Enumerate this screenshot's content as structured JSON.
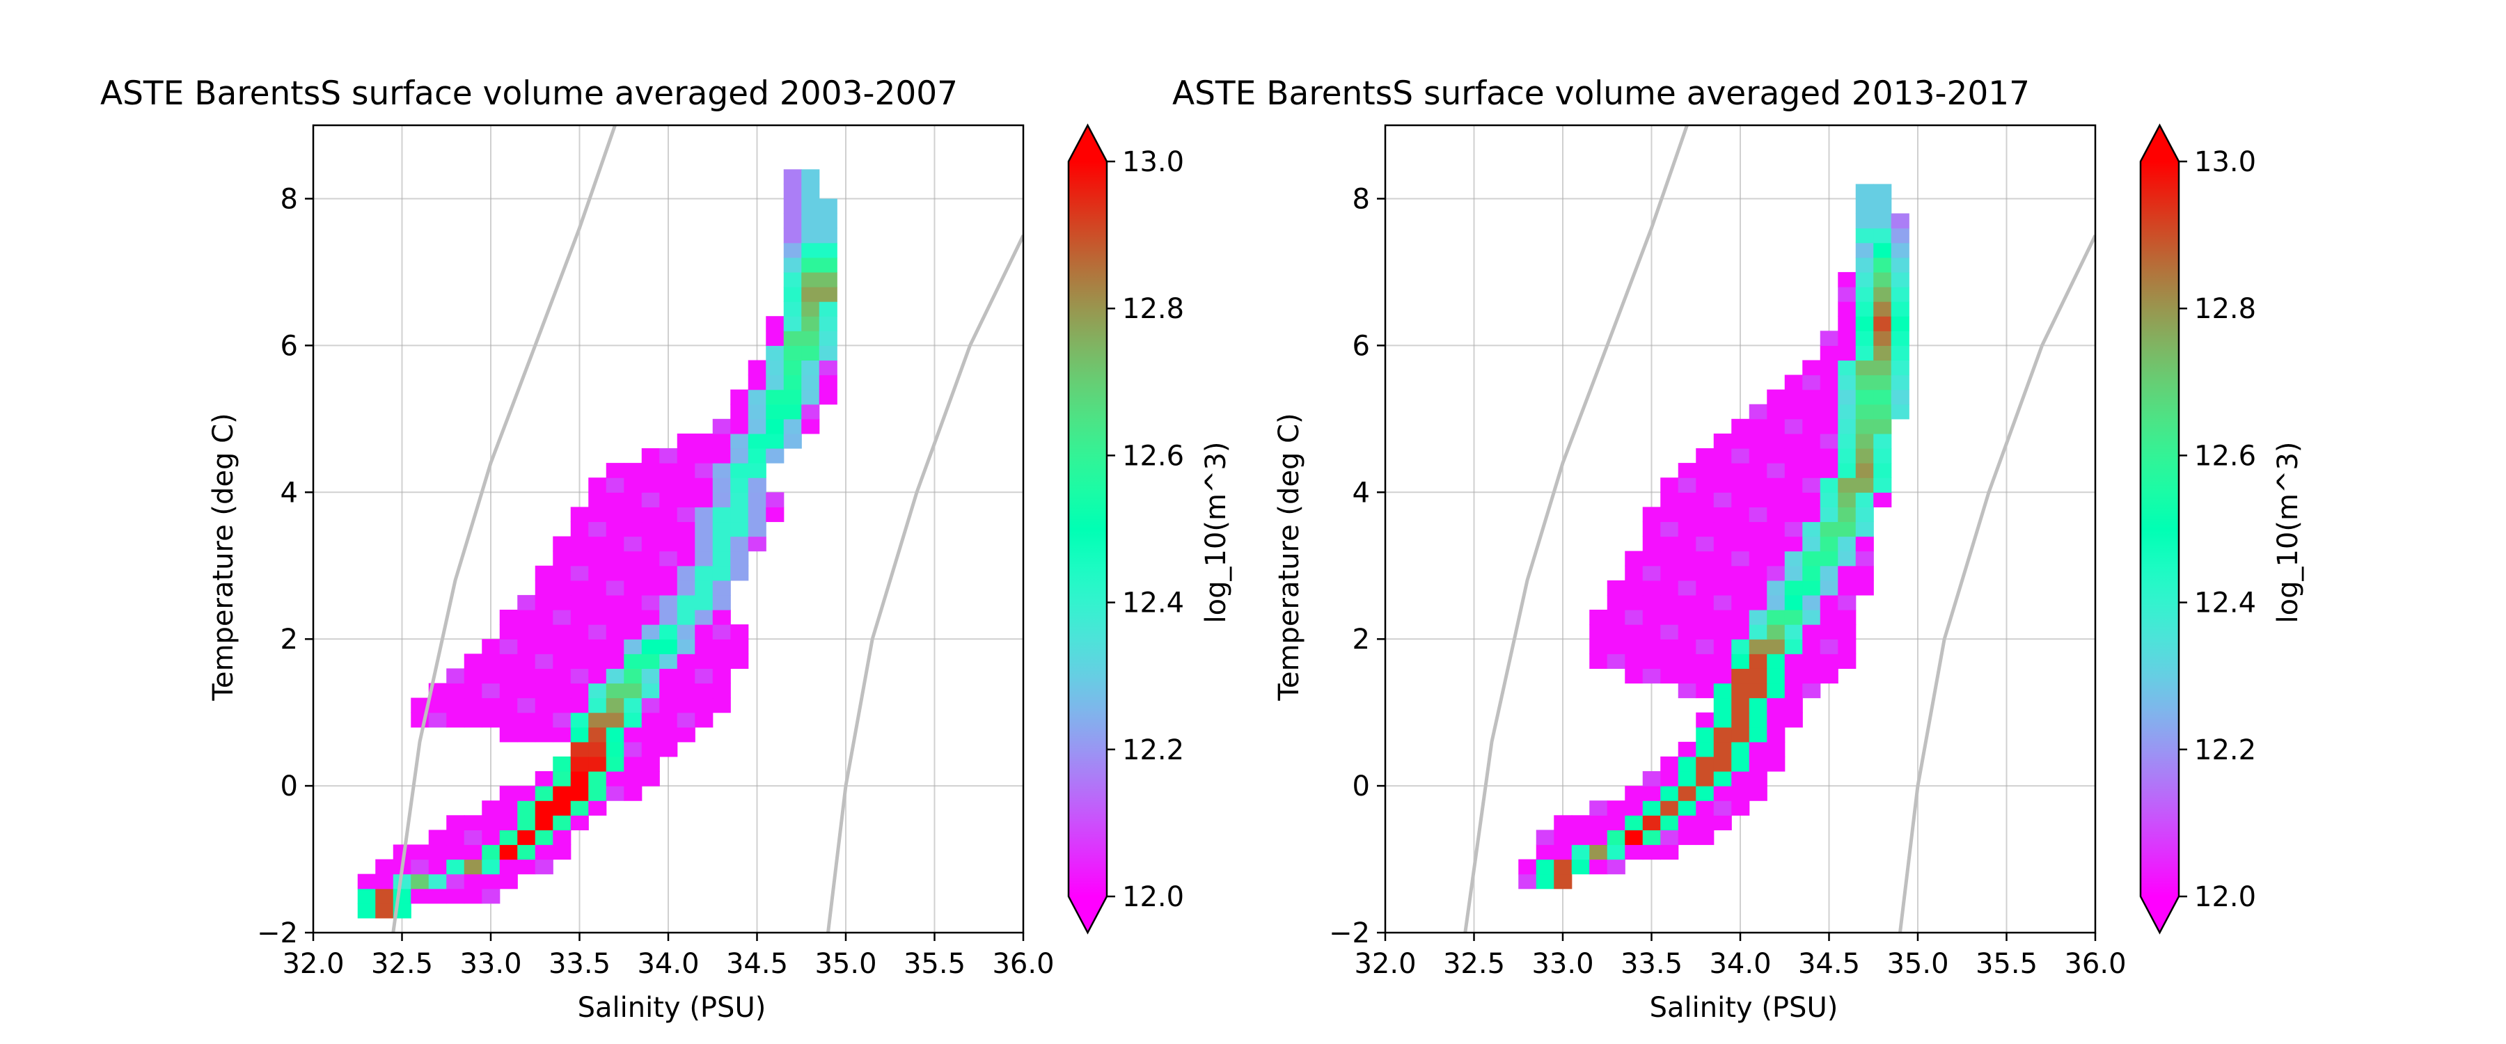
{
  "chart_data": [
    {
      "type": "heatmap",
      "title": "ASTE BarentsS surface volume averaged 2003-2007",
      "xlabel": "Salinity (PSU)",
      "ylabel": "Temperature (deg C)",
      "xlim": [
        32.0,
        36.0
      ],
      "ylim": [
        -2,
        9
      ],
      "xticks": [
        "32.0",
        "32.5",
        "33.0",
        "33.5",
        "34.0",
        "34.5",
        "35.0",
        "35.5",
        "36.0"
      ],
      "yticks": [
        "−2",
        "0",
        "2",
        "4",
        "6",
        "8"
      ],
      "grid": true,
      "bin_size": {
        "salinity": 0.1,
        "temperature": 0.2
      },
      "colorbar": {
        "label": "log_10(m^3)",
        "range": [
          12.0,
          13.0
        ],
        "ticks": [
          "12.0",
          "12.2",
          "12.4",
          "12.6",
          "12.8",
          "13.0"
        ],
        "extend": "both",
        "colormap": "rainbow"
      },
      "density_contours": [
        {
          "salinity": [
            32.45,
            32.6,
            32.8,
            33.0,
            33.25,
            33.5,
            33.7
          ],
          "temperature": [
            -2,
            0.6,
            2.8,
            4.4,
            6.0,
            7.6,
            9.0
          ]
        },
        {
          "salinity": [
            34.9,
            35.0,
            35.15,
            35.4,
            35.7,
            36.0
          ],
          "temperature": [
            -2,
            0,
            2,
            4,
            6,
            7.5
          ]
        }
      ],
      "ridge": [
        {
          "s": 32.4,
          "t": -1.5,
          "v": 12.9
        },
        {
          "s": 32.6,
          "t": -1.3,
          "v": 12.7
        },
        {
          "s": 32.9,
          "t": -1.1,
          "v": 12.8
        },
        {
          "s": 33.1,
          "t": -0.9,
          "v": 13.0
        },
        {
          "s": 33.3,
          "t": -0.5,
          "v": 13.0
        },
        {
          "s": 33.5,
          "t": 0.1,
          "v": 13.0
        },
        {
          "s": 33.6,
          "t": 0.7,
          "v": 12.9
        },
        {
          "s": 33.8,
          "t": 1.5,
          "v": 12.6
        },
        {
          "s": 34.1,
          "t": 2.3,
          "v": 12.4
        },
        {
          "s": 34.3,
          "t": 3.1,
          "v": 12.4
        },
        {
          "s": 34.4,
          "t": 4.0,
          "v": 12.4
        },
        {
          "s": 34.6,
          "t": 4.9,
          "v": 12.5
        },
        {
          "s": 34.75,
          "t": 5.9,
          "v": 12.6
        },
        {
          "s": 34.85,
          "t": 6.8,
          "v": 12.8
        },
        {
          "s": 34.85,
          "t": 7.5,
          "v": 12.3
        }
      ],
      "envelope": [
        {
          "t": -1.7,
          "s": [
            32.3,
            32.5
          ]
        },
        {
          "t": -1.5,
          "s": [
            32.3,
            33.0
          ]
        },
        {
          "t": -1.1,
          "s": [
            32.4,
            33.3
          ]
        },
        {
          "t": -0.5,
          "s": [
            32.8,
            33.5
          ]
        },
        {
          "t": 0.1,
          "s": [
            33.3,
            33.9
          ]
        },
        {
          "t": 0.5,
          "s": [
            33.5,
            34.0
          ]
        },
        {
          "t": 0.9,
          "s": [
            32.6,
            34.2
          ]
        },
        {
          "t": 1.3,
          "s": [
            32.7,
            34.3
          ]
        },
        {
          "t": 1.9,
          "s": [
            33.0,
            34.4
          ]
        },
        {
          "t": 2.5,
          "s": [
            33.2,
            34.3
          ]
        },
        {
          "t": 3.1,
          "s": [
            33.4,
            34.4
          ]
        },
        {
          "t": 3.7,
          "s": [
            33.5,
            34.6
          ]
        },
        {
          "t": 4.3,
          "s": [
            33.7,
            34.5
          ]
        },
        {
          "t": 4.9,
          "s": [
            34.3,
            34.8
          ]
        },
        {
          "t": 5.5,
          "s": [
            34.5,
            34.9
          ]
        },
        {
          "t": 6.1,
          "s": [
            34.6,
            34.9
          ]
        },
        {
          "t": 6.9,
          "s": [
            34.7,
            34.9
          ]
        },
        {
          "t": 7.7,
          "s": [
            34.7,
            34.9
          ]
        },
        {
          "t": 8.3,
          "s": [
            34.7,
            34.8
          ]
        }
      ]
    },
    {
      "type": "heatmap",
      "title": "ASTE BarentsS surface volume averaged 2013-2017",
      "xlabel": "Salinity (PSU)",
      "ylabel": "Temperature (deg C)",
      "xlim": [
        32.0,
        36.0
      ],
      "ylim": [
        -2,
        9
      ],
      "xticks": [
        "32.0",
        "32.5",
        "33.0",
        "33.5",
        "34.0",
        "34.5",
        "35.0",
        "35.5",
        "36.0"
      ],
      "yticks": [
        "−2",
        "0",
        "2",
        "4",
        "6",
        "8"
      ],
      "grid": true,
      "bin_size": {
        "salinity": 0.1,
        "temperature": 0.2
      },
      "colorbar": {
        "label": "log_10(m^3)",
        "range": [
          12.0,
          13.0
        ],
        "ticks": [
          "12.0",
          "12.2",
          "12.4",
          "12.6",
          "12.8",
          "13.0"
        ],
        "extend": "both",
        "colormap": "rainbow"
      },
      "density_contours": [
        {
          "salinity": [
            32.45,
            32.6,
            32.8,
            33.0,
            33.25,
            33.5,
            33.7
          ],
          "temperature": [
            -2,
            0.6,
            2.8,
            4.4,
            6.0,
            7.6,
            9.0
          ]
        },
        {
          "salinity": [
            34.9,
            35.0,
            35.15,
            35.4,
            35.7,
            36.0
          ],
          "temperature": [
            -2,
            0,
            2,
            4,
            6,
            7.5
          ]
        }
      ],
      "ridge": [
        {
          "s": 33.0,
          "t": -1.1,
          "v": 12.9
        },
        {
          "s": 33.2,
          "t": -0.9,
          "v": 12.8
        },
        {
          "s": 33.4,
          "t": -0.7,
          "v": 13.0
        },
        {
          "s": 33.6,
          "t": -0.3,
          "v": 12.9
        },
        {
          "s": 33.8,
          "t": 0.1,
          "v": 12.9
        },
        {
          "s": 34.0,
          "t": 0.9,
          "v": 12.9
        },
        {
          "s": 34.1,
          "t": 1.7,
          "v": 12.9
        },
        {
          "s": 34.3,
          "t": 2.5,
          "v": 12.5
        },
        {
          "s": 34.5,
          "t": 3.3,
          "v": 12.6
        },
        {
          "s": 34.7,
          "t": 4.3,
          "v": 12.8
        },
        {
          "s": 34.75,
          "t": 5.3,
          "v": 12.6
        },
        {
          "s": 34.8,
          "t": 6.3,
          "v": 12.9
        },
        {
          "s": 34.8,
          "t": 7.1,
          "v": 12.6
        },
        {
          "s": 34.75,
          "t": 7.7,
          "v": 12.3
        }
      ],
      "envelope": [
        {
          "t": -1.3,
          "s": [
            32.8,
            33.0
          ]
        },
        {
          "t": -0.9,
          "s": [
            32.9,
            33.6
          ]
        },
        {
          "t": -0.5,
          "s": [
            33.0,
            33.9
          ]
        },
        {
          "t": -0.1,
          "s": [
            33.4,
            34.1
          ]
        },
        {
          "t": 0.5,
          "s": [
            33.7,
            34.2
          ]
        },
        {
          "t": 1.1,
          "s": [
            33.9,
            34.3
          ]
        },
        {
          "t": 1.7,
          "s": [
            33.2,
            34.6
          ]
        },
        {
          "t": 2.3,
          "s": [
            33.2,
            34.6
          ]
        },
        {
          "t": 2.9,
          "s": [
            33.4,
            34.7
          ]
        },
        {
          "t": 3.5,
          "s": [
            33.5,
            34.7
          ]
        },
        {
          "t": 4.1,
          "s": [
            33.6,
            34.8
          ]
        },
        {
          "t": 4.7,
          "s": [
            33.9,
            34.8
          ]
        },
        {
          "t": 5.3,
          "s": [
            34.2,
            34.9
          ]
        },
        {
          "t": 5.9,
          "s": [
            34.5,
            34.9
          ]
        },
        {
          "t": 6.7,
          "s": [
            34.6,
            34.9
          ]
        },
        {
          "t": 7.5,
          "s": [
            34.7,
            34.9
          ]
        },
        {
          "t": 8.1,
          "s": [
            34.7,
            34.8
          ]
        }
      ]
    }
  ]
}
